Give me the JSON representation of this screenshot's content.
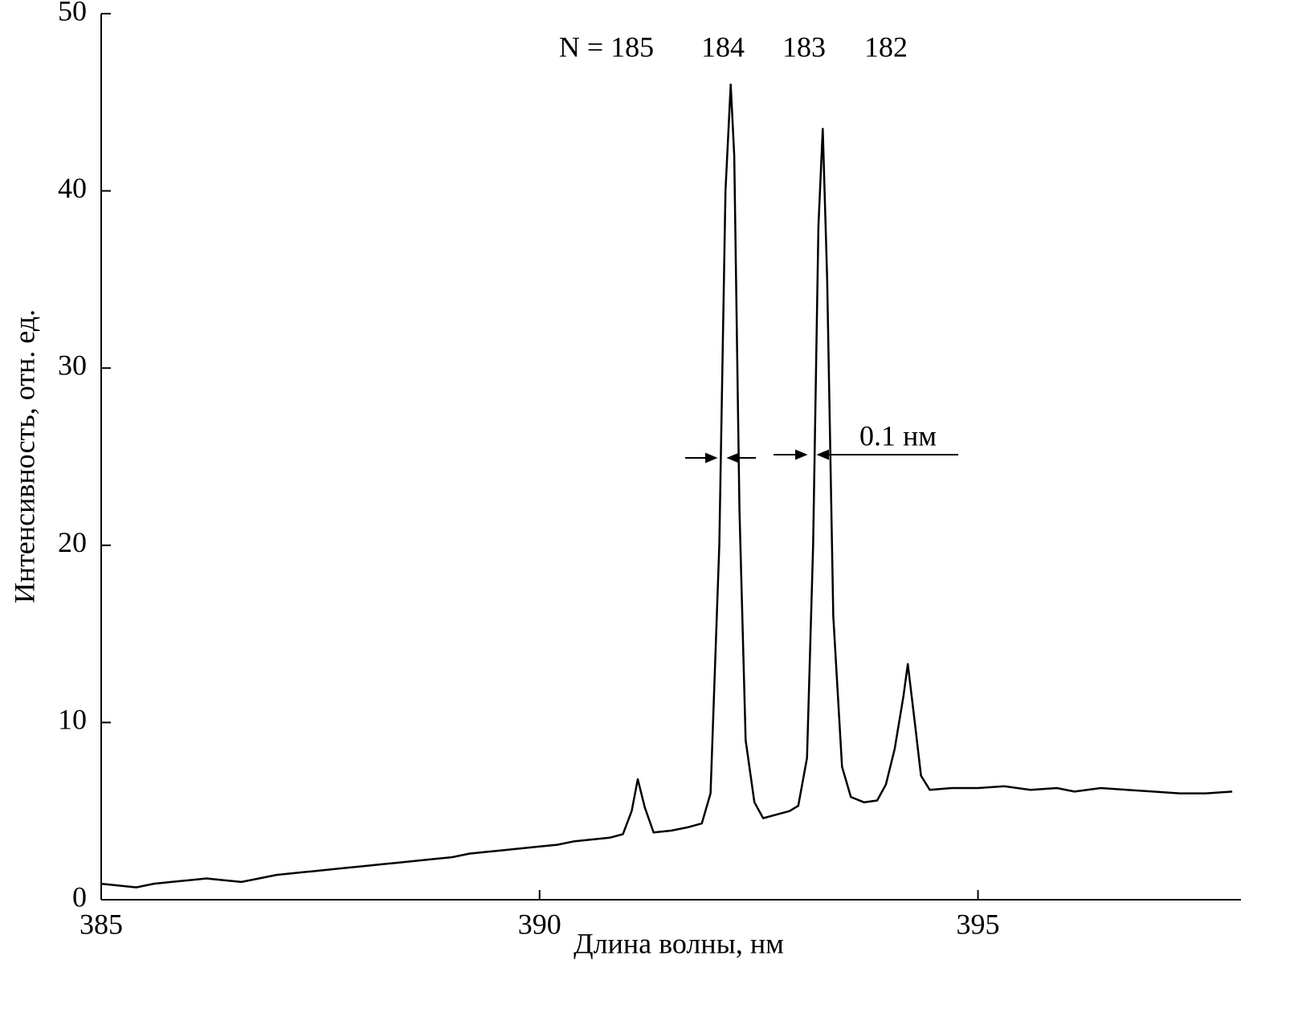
{
  "chart_data": {
    "type": "line",
    "xlabel": "Длина волны, нм",
    "ylabel": "Интенсивность, отн. ед.",
    "annotations": [
      "N = 185",
      "184",
      "183",
      "182",
      "0.1 нм"
    ],
    "xlim": [
      385,
      398
    ],
    "xticks": [
      385,
      390,
      395
    ],
    "ylim": [
      0,
      50
    ],
    "yticks": [
      0,
      10,
      20,
      30,
      40,
      50
    ],
    "color": "#000000",
    "x": [
      385.0,
      385.2,
      385.4,
      385.6,
      385.8,
      386.0,
      386.2,
      386.4,
      386.6,
      386.8,
      387.0,
      387.2,
      387.4,
      387.6,
      387.8,
      388.0,
      388.2,
      388.4,
      388.6,
      388.8,
      389.0,
      389.2,
      389.4,
      389.6,
      389.8,
      390.0,
      390.2,
      390.4,
      390.6,
      390.8,
      390.95,
      391.05,
      391.12,
      391.2,
      391.3,
      391.5,
      391.7,
      391.85,
      391.95,
      392.05,
      392.12,
      392.18,
      392.22,
      392.28,
      392.35,
      392.45,
      392.55,
      392.7,
      392.85,
      392.95,
      393.05,
      393.12,
      393.18,
      393.23,
      393.28,
      393.35,
      393.45,
      393.55,
      393.7,
      393.85,
      393.95,
      394.05,
      394.15,
      394.2,
      394.28,
      394.35,
      394.45,
      394.7,
      395.0,
      395.3,
      395.6,
      395.9,
      396.1,
      396.4,
      396.7,
      397.0,
      397.3,
      397.6,
      397.9
    ],
    "y": [
      0.9,
      0.8,
      0.7,
      0.9,
      1.0,
      1.1,
      1.2,
      1.1,
      1.0,
      1.2,
      1.4,
      1.5,
      1.6,
      1.7,
      1.8,
      1.9,
      2.0,
      2.1,
      2.2,
      2.3,
      2.4,
      2.6,
      2.7,
      2.8,
      2.9,
      3.0,
      3.1,
      3.3,
      3.4,
      3.5,
      3.7,
      5.0,
      6.8,
      5.2,
      3.8,
      3.9,
      4.1,
      4.3,
      6.0,
      20.0,
      40.0,
      46.0,
      42.0,
      22.0,
      9.0,
      5.5,
      4.6,
      4.8,
      5.0,
      5.3,
      8.0,
      20.0,
      38.0,
      43.5,
      35.0,
      16.0,
      7.5,
      5.8,
      5.5,
      5.6,
      6.5,
      8.5,
      11.5,
      13.3,
      10.0,
      7.0,
      6.2,
      6.3,
      6.3,
      6.4,
      6.2,
      6.3,
      6.1,
      6.3,
      6.2,
      6.1,
      6.0,
      6.0,
      6.1
    ]
  }
}
